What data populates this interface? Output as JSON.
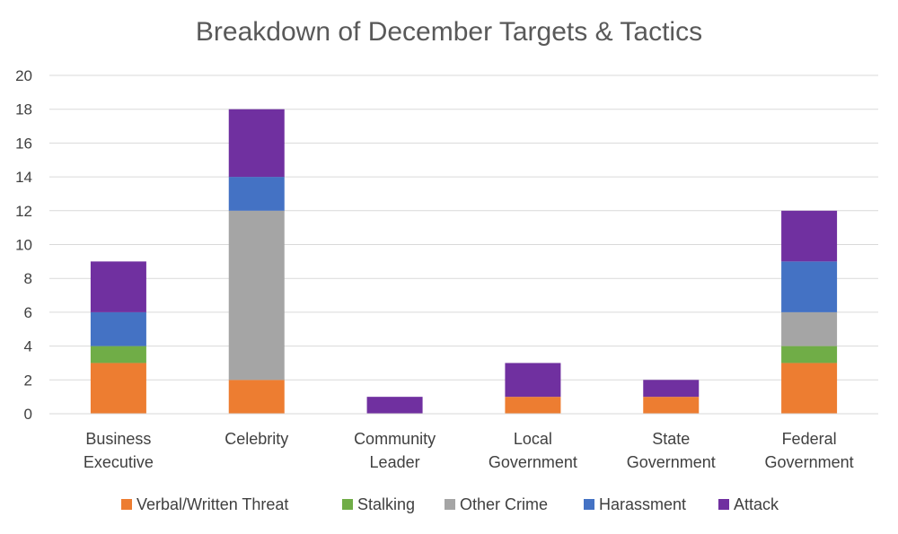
{
  "chart_data": {
    "type": "bar",
    "stacked": true,
    "title": "Breakdown of December Targets & Tactics",
    "categories": [
      [
        "Business",
        "Executive"
      ],
      [
        "Celebrity"
      ],
      [
        "Community",
        "Leader"
      ],
      [
        "Local",
        "Government"
      ],
      [
        "State",
        "Government"
      ],
      [
        "Federal",
        "Government"
      ]
    ],
    "series": [
      {
        "name": "Verbal/Written Threat",
        "color": "#ed7d31",
        "values": [
          3,
          2,
          0,
          1,
          1,
          3
        ]
      },
      {
        "name": "Stalking",
        "color": "#70ad47",
        "values": [
          1,
          0,
          0,
          0,
          0,
          1
        ]
      },
      {
        "name": "Other Crime",
        "color": "#a5a5a5",
        "values": [
          0,
          10,
          0,
          0,
          0,
          2
        ]
      },
      {
        "name": "Harassment",
        "color": "#4472c4",
        "values": [
          2,
          2,
          0,
          0,
          0,
          3
        ]
      },
      {
        "name": "Attack",
        "color": "#7030a0",
        "values": [
          3,
          4,
          1,
          2,
          1,
          3
        ]
      }
    ],
    "ylim": [
      0,
      20
    ],
    "yticks": [
      "0",
      "2",
      "4",
      "6",
      "8",
      "10",
      "12",
      "14",
      "16",
      "18",
      "20"
    ],
    "grid": true,
    "legend": "bottom"
  }
}
